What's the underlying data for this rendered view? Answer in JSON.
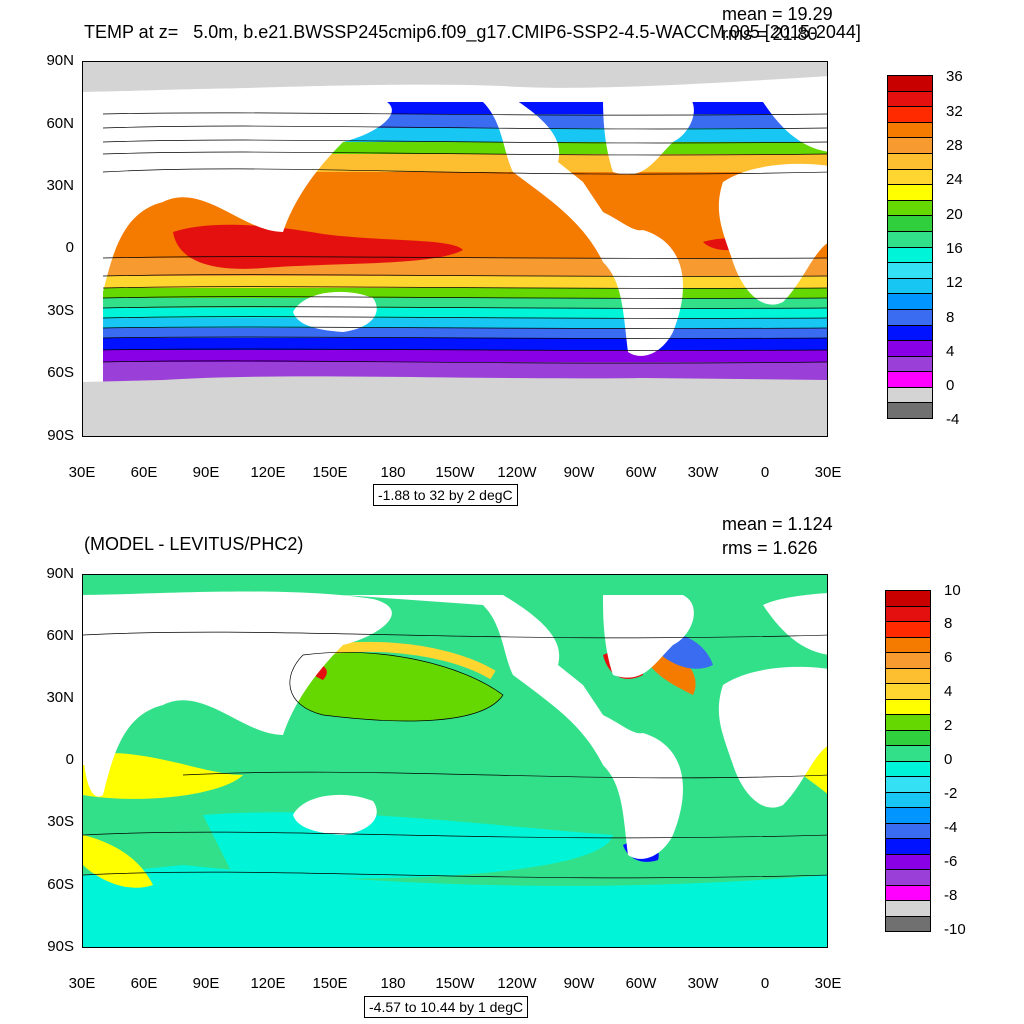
{
  "top": {
    "title": "TEMP at z=   5.0m, b.e21.BWSSP245cmip6.f09_g17.CMIP6-SSP2-4.5-WACCM.005 [2015-2044]",
    "mean": "mean = 19.29",
    "rms": "rms = 21.80",
    "range": "-1.88 to 32 by 2 degC",
    "lat_labels": [
      "90N",
      "60N",
      "30N",
      "0",
      "30S",
      "60S",
      "90S"
    ],
    "lon_labels": [
      "30E",
      "60E",
      "90E",
      "120E",
      "150E",
      "180",
      "150W",
      "120W",
      "90W",
      "60W",
      "30W",
      "0",
      "30E"
    ],
    "colorbar_labels": [
      "36",
      "32",
      "28",
      "24",
      "20",
      "16",
      "12",
      "8",
      "4",
      "0",
      "-4"
    ],
    "colorbar_colors": [
      "#c80000",
      "#e41010",
      "#ff2a00",
      "#f47a00",
      "#f79a30",
      "#fdbf30",
      "#ffd530",
      "#ffff00",
      "#64d800",
      "#2fcf3d",
      "#33e08a",
      "#00f5d8",
      "#33e0f4",
      "#18c6f4",
      "#0095ff",
      "#3a6cf2",
      "#0012ff",
      "#8a00e6",
      "#9a40d8",
      "#ff00ff",
      "#d4d4d4",
      "#707070"
    ]
  },
  "bottom": {
    "title": "(MODEL - LEVITUS/PHC2)",
    "mean": "mean = 1.124",
    "rms": "rms = 1.626",
    "range": "-4.57 to 10.44 by 1 degC",
    "lat_labels": [
      "90N",
      "60N",
      "30N",
      "0",
      "30S",
      "60S",
      "90S"
    ],
    "lon_labels": [
      "30E",
      "60E",
      "90E",
      "120E",
      "150E",
      "180",
      "150W",
      "120W",
      "90W",
      "60W",
      "30W",
      "0",
      "30E"
    ],
    "colorbar_labels": [
      "10",
      "8",
      "6",
      "4",
      "2",
      "0",
      "-2",
      "-4",
      "-6",
      "-8",
      "-10"
    ],
    "colorbar_colors": [
      "#c80000",
      "#e41010",
      "#ff2a00",
      "#f47a00",
      "#f79a30",
      "#fdbf30",
      "#ffd530",
      "#ffff00",
      "#64d800",
      "#2fcf3d",
      "#33e08a",
      "#00f5d8",
      "#33e0f4",
      "#18c6f4",
      "#0095ff",
      "#3a6cf2",
      "#0012ff",
      "#8a00e6",
      "#9a40d8",
      "#ff00ff",
      "#d4d4d4",
      "#707070"
    ]
  },
  "colors": {
    "land": "#ffffff",
    "ice": "#d4d4d4"
  }
}
